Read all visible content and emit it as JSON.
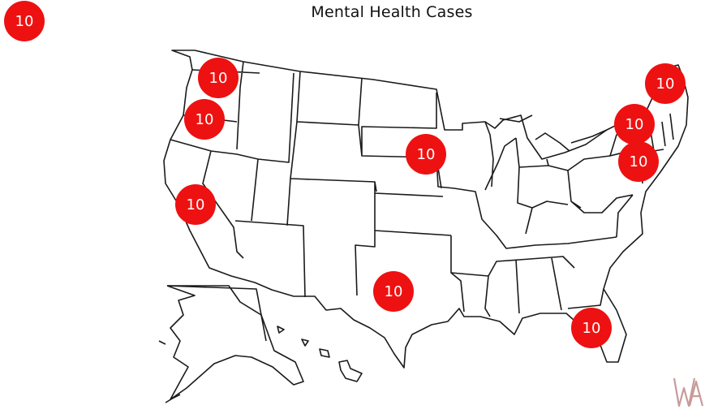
{
  "title": "Mental Health Cases",
  "legend_marker": {
    "value": "10"
  },
  "markers": [
    {
      "state": "Washington",
      "value": "10"
    },
    {
      "state": "Oregon",
      "value": "10"
    },
    {
      "state": "California",
      "value": "10"
    },
    {
      "state": "Nebraska",
      "value": "10"
    },
    {
      "state": "Texas",
      "value": "10"
    },
    {
      "state": "Maine",
      "value": "10"
    },
    {
      "state": "Massachusetts",
      "value": "10"
    },
    {
      "state": "New Jersey",
      "value": "10"
    },
    {
      "state": "Florida",
      "value": "10"
    }
  ],
  "colors": {
    "marker": "#ee1111",
    "marker_text": "#ffffff",
    "outline": "#1a1a1a",
    "watermark": "#c89a9a"
  },
  "watermark_text": "WA"
}
